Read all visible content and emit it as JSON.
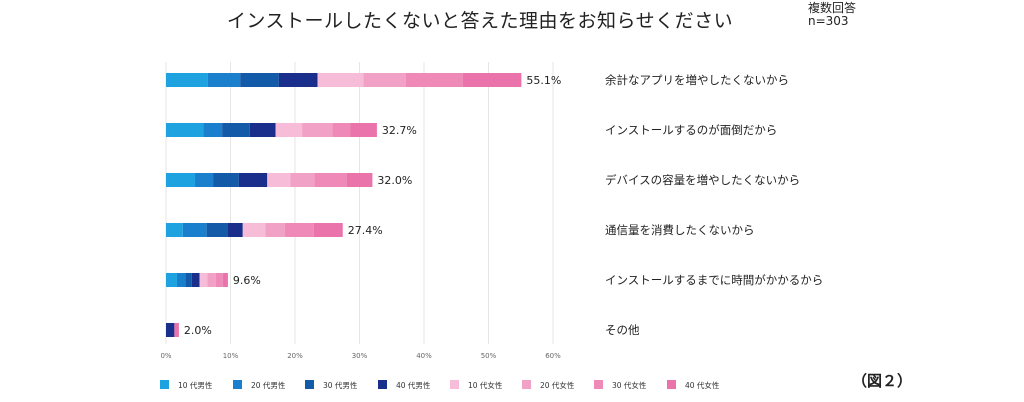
{
  "title": "インストールしたくないと答えた理由をお知らせください",
  "note_line1": "複数回答",
  "note_line2": "n=303",
  "figure_label": "（図２）",
  "chart_data": {
    "type": "bar",
    "orientation": "horizontal",
    "stacked": true,
    "categories": [
      "余計なアプリを増やしたくないから",
      "インストールするのが面倒だから",
      "デバイスの容量を増やしたくないから",
      "通信量を消費したくないから",
      "インストールするまでに時間がかかるから",
      "その他"
    ],
    "series": [
      {
        "name": "10 代男性",
        "color": "#1fa3e0",
        "values": [
          6.5,
          5.8,
          4.5,
          2.6,
          1.7,
          0.0
        ]
      },
      {
        "name": "20 代男性",
        "color": "#1a7fcc",
        "values": [
          5.0,
          2.9,
          2.8,
          3.7,
          1.3,
          0.0
        ]
      },
      {
        "name": "30 代男性",
        "color": "#135aa8",
        "values": [
          6.0,
          4.3,
          4.0,
          3.2,
          1.0,
          0.0
        ]
      },
      {
        "name": "40 代男性",
        "color": "#1a2e8c",
        "values": [
          6.0,
          4.0,
          4.4,
          2.4,
          1.2,
          1.3
        ]
      },
      {
        "name": "10 代女性",
        "color": "#f7bdd8",
        "values": [
          7.1,
          4.1,
          3.6,
          3.5,
          1.2,
          0.0
        ]
      },
      {
        "name": "20 代女性",
        "color": "#f2a1c6",
        "values": [
          6.6,
          4.7,
          3.7,
          3.0,
          1.3,
          0.0
        ]
      },
      {
        "name": "30 代女性",
        "color": "#ef89b8",
        "values": [
          8.8,
          2.8,
          5.0,
          4.5,
          1.1,
          0.0
        ]
      },
      {
        "name": "40 代女性",
        "color": "#ea73ab",
        "values": [
          9.1,
          4.1,
          4.0,
          4.5,
          0.8,
          0.7
        ]
      }
    ],
    "totals": [
      55.1,
      32.7,
      32.0,
      27.4,
      9.6,
      2.0
    ],
    "value_labels": [
      "55.1%",
      "32.7%",
      "32.0%",
      "27.4%",
      "9.6%",
      "2.0%"
    ],
    "x_ticks": [
      "0%",
      "10%",
      "20%",
      "30%",
      "40%",
      "50%",
      "60%"
    ],
    "xlim": [
      0,
      60
    ],
    "grid": true,
    "legend_position": "bottom"
  }
}
